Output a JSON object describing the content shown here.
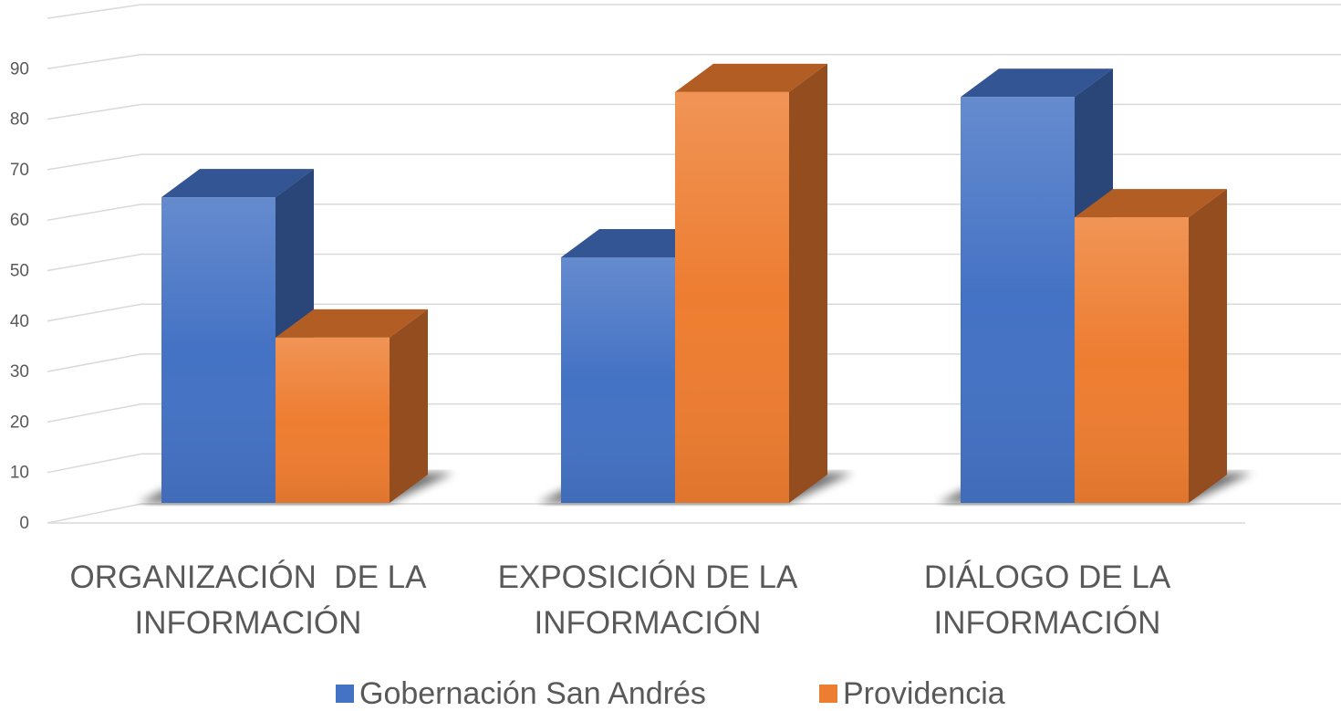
{
  "chart_data": {
    "type": "bar3d",
    "categories": [
      [
        "ORGANIZACIÓN  DE LA",
        "INFORMACIÓN"
      ],
      [
        "EXPOSICIÓN DE LA",
        "INFORMACIÓN"
      ],
      [
        "DIÁLOGO DE LA",
        "INFORMACIÓN"
      ]
    ],
    "series": [
      {
        "name": "Gobernación San Andrés",
        "color": "#4472c4",
        "values": [
          61,
          49,
          81
        ]
      },
      {
        "name": "Providencia",
        "color": "#ed7d31",
        "values": [
          33,
          82,
          57
        ]
      }
    ],
    "ylim": [
      0,
      100
    ],
    "yticks": [
      0,
      10,
      20,
      30,
      40,
      50,
      60,
      70,
      80,
      90
    ],
    "grid": true,
    "legend": "bottom"
  }
}
